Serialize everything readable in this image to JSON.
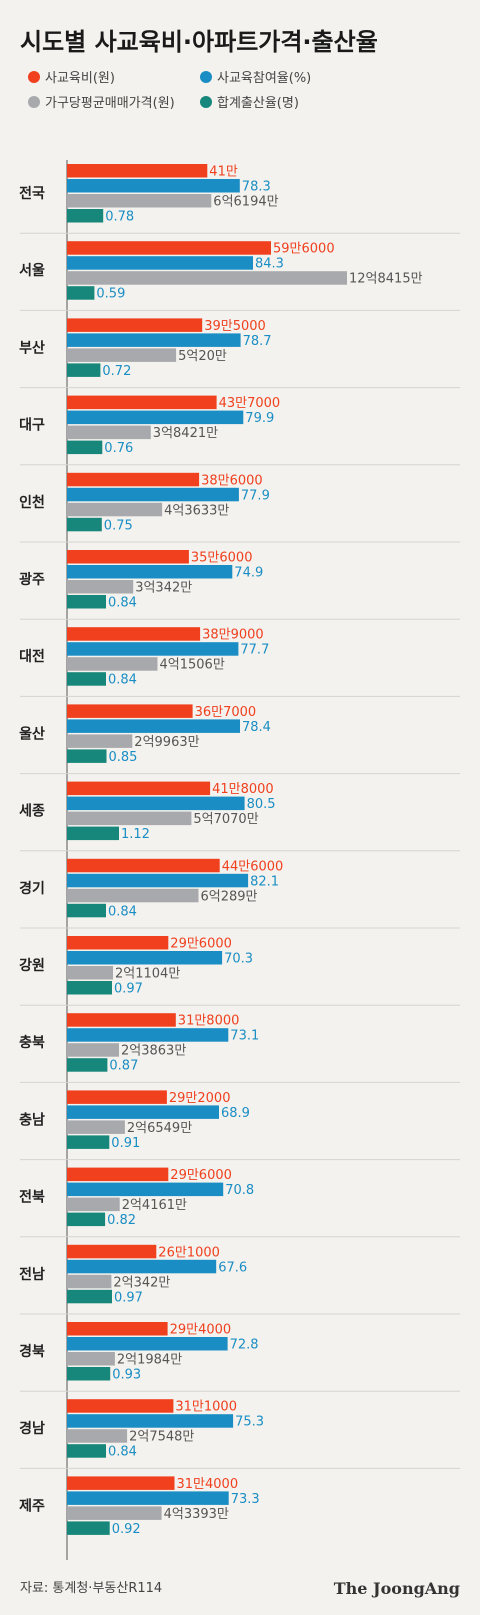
{
  "chart_data": {
    "type": "bar",
    "title": "시도별 사교육비·아파트가격·출산율",
    "legend": [
      {
        "name": "사교육비(원)",
        "color": "#f0401e"
      },
      {
        "name": "사교육참여율(%)",
        "color": "#1a8ec4"
      },
      {
        "name": "가구당평균매매가격(원)",
        "color": "#a7a9ac"
      },
      {
        "name": "합계출산율(명)",
        "color": "#16877a"
      }
    ],
    "categories": [
      "전국",
      "서울",
      "부산",
      "대구",
      "인천",
      "광주",
      "대전",
      "울산",
      "세종",
      "경기",
      "강원",
      "충북",
      "충남",
      "전북",
      "전남",
      "경북",
      "경남",
      "제주"
    ],
    "series": [
      {
        "name": "사교육비(원)",
        "color": "#f0401e",
        "label_color": "#f0401e",
        "values": [
          410000,
          596000,
          395000,
          437000,
          386000,
          356000,
          389000,
          367000,
          418000,
          446000,
          296000,
          318000,
          292000,
          296000,
          261000,
          294000,
          311000,
          314000
        ],
        "labels": [
          "41만",
          "59만6000",
          "39만5000",
          "43만7000",
          "38만6000",
          "35만6000",
          "38만9000",
          "36만7000",
          "41만8000",
          "44만6000",
          "29만6000",
          "31만8000",
          "29만2000",
          "29만6000",
          "26만1000",
          "29만4000",
          "31만1000",
          "31만4000"
        ]
      },
      {
        "name": "사교육참여율(%)",
        "color": "#1a8ec4",
        "label_color": "#1a8ec4",
        "values": [
          78.3,
          84.3,
          78.7,
          79.9,
          77.9,
          74.9,
          77.7,
          78.4,
          80.5,
          82.1,
          70.3,
          73.1,
          68.9,
          70.8,
          67.6,
          72.8,
          75.3,
          73.3
        ],
        "labels": [
          "78.3",
          "84.3",
          "78.7",
          "79.9",
          "77.9",
          "74.9",
          "77.7",
          "78.4",
          "80.5",
          "82.1",
          "70.3",
          "73.1",
          "68.9",
          "70.8",
          "67.6",
          "72.8",
          "75.3",
          "73.3"
        ]
      },
      {
        "name": "가구당평균매매가격(원)",
        "color": "#a7a9ac",
        "label_color": "#555555",
        "values": [
          661940000,
          1284150000,
          500200000,
          384210000,
          436330000,
          303420000,
          415060000,
          299630000,
          570700000,
          602890000,
          211040000,
          238630000,
          265490000,
          241610000,
          203420000,
          219840000,
          275480000,
          433930000
        ],
        "labels": [
          "6억6194만",
          "12억8415만",
          "5억20만",
          "3억8421만",
          "4억3633만",
          "3억342만",
          "4억1506만",
          "2억9963만",
          "5억7070만",
          "6억289만",
          "2억1104만",
          "2억3863만",
          "2억6549만",
          "2억4161만",
          "2억342만",
          "2억1984만",
          "2억7548만",
          "4억3393만"
        ]
      },
      {
        "name": "합계출산율(명)",
        "color": "#16877a",
        "label_color": "#1a8ec4",
        "values": [
          0.78,
          0.59,
          0.72,
          0.76,
          0.75,
          0.84,
          0.84,
          0.85,
          1.12,
          0.84,
          0.97,
          0.87,
          0.91,
          0.82,
          0.97,
          0.93,
          0.84,
          0.92
        ],
        "labels": [
          "0.78",
          "0.59",
          "0.72",
          "0.76",
          "0.75",
          "0.84",
          "0.84",
          "0.85",
          "1.12",
          "0.84",
          "0.97",
          "0.87",
          "0.91",
          "0.82",
          "0.97",
          "0.93",
          "0.84",
          "0.92"
        ]
      }
    ],
    "source": "자료: 통계청·부동산R114",
    "brand": "The JoongAng"
  }
}
